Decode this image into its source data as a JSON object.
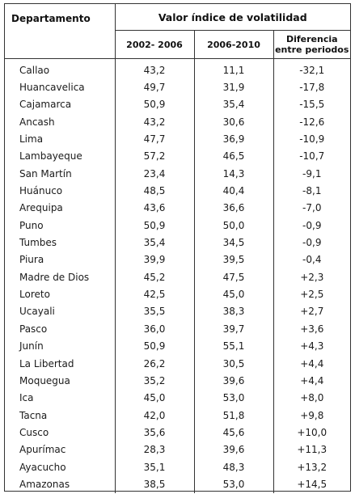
{
  "table": {
    "header": {
      "department": "Departamento",
      "group": "Valor índice de volatilidad",
      "period1": "2002- 2006",
      "period2": "2006-2010",
      "difference_line1": "Diferencia",
      "difference_line2": "entre periodos"
    },
    "rows": [
      {
        "dept": "Callao",
        "p1": "43,2",
        "p2": "11,1",
        "diff": "-32,1"
      },
      {
        "dept": "Huancavelica",
        "p1": "49,7",
        "p2": "31,9",
        "diff": "-17,8"
      },
      {
        "dept": "Cajamarca",
        "p1": "50,9",
        "p2": "35,4",
        "diff": "-15,5"
      },
      {
        "dept": "Ancash",
        "p1": "43,2",
        "p2": "30,6",
        "diff": "-12,6"
      },
      {
        "dept": "Lima",
        "p1": "47,7",
        "p2": "36,9",
        "diff": "-10,9"
      },
      {
        "dept": "Lambayeque",
        "p1": "57,2",
        "p2": "46,5",
        "diff": "-10,7"
      },
      {
        "dept": "San Martín",
        "p1": "23,4",
        "p2": "14,3",
        "diff": "-9,1"
      },
      {
        "dept": "Huánuco",
        "p1": "48,5",
        "p2": "40,4",
        "diff": "-8,1"
      },
      {
        "dept": "Arequipa",
        "p1": "43,6",
        "p2": "36,6",
        "diff": "-7,0"
      },
      {
        "dept": "Puno",
        "p1": "50,9",
        "p2": "50,0",
        "diff": "-0,9"
      },
      {
        "dept": "Tumbes",
        "p1": "35,4",
        "p2": "34,5",
        "diff": "-0,9"
      },
      {
        "dept": "Piura",
        "p1": "39,9",
        "p2": "39,5",
        "diff": "-0,4"
      },
      {
        "dept": "Madre de Dios",
        "p1": "45,2",
        "p2": "47,5",
        "diff": "+2,3"
      },
      {
        "dept": "Loreto",
        "p1": "42,5",
        "p2": "45,0",
        "diff": "+2,5"
      },
      {
        "dept": "Ucayali",
        "p1": "35,5",
        "p2": "38,3",
        "diff": "+2,7"
      },
      {
        "dept": "Pasco",
        "p1": "36,0",
        "p2": "39,7",
        "diff": "+3,6"
      },
      {
        "dept": "Junín",
        "p1": "50,9",
        "p2": "55,1",
        "diff": "+4,3"
      },
      {
        "dept": "La Libertad",
        "p1": "26,2",
        "p2": "30,5",
        "diff": "+4,4"
      },
      {
        "dept": "Moquegua",
        "p1": "35,2",
        "p2": "39,6",
        "diff": "+4,4"
      },
      {
        "dept": "Ica",
        "p1": "45,0",
        "p2": "53,0",
        "diff": "+8,0"
      },
      {
        "dept": "Tacna",
        "p1": "42,0",
        "p2": "51,8",
        "diff": "+9,8"
      },
      {
        "dept": "Cusco",
        "p1": "35,6",
        "p2": "45,6",
        "diff": "+10,0"
      },
      {
        "dept": "Apurímac",
        "p1": "28,3",
        "p2": "39,6",
        "diff": "+11,3"
      },
      {
        "dept": "Ayacucho",
        "p1": "35,1",
        "p2": "48,3",
        "diff": "+13,2"
      },
      {
        "dept": "Amazonas",
        "p1": "38,5",
        "p2": "53,0",
        "diff": "+14,5"
      }
    ]
  }
}
